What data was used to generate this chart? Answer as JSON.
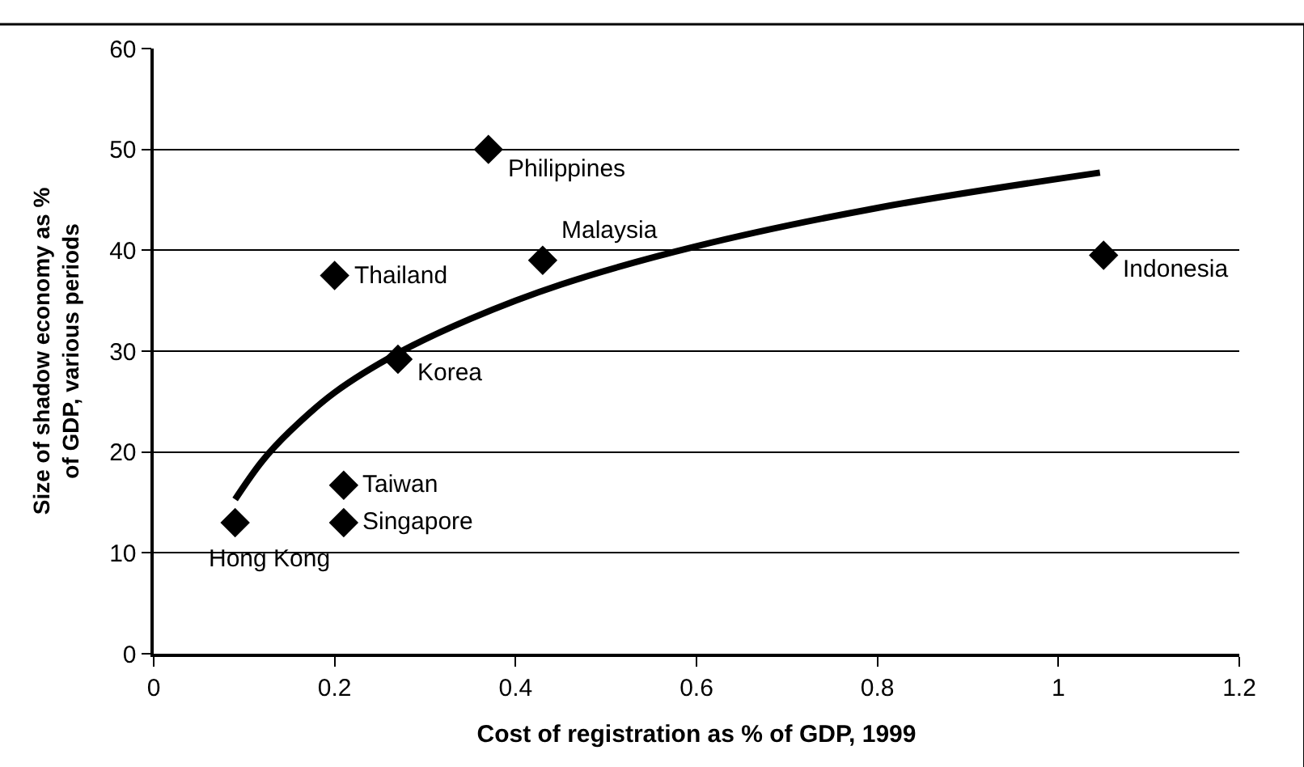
{
  "chart_data": {
    "type": "scatter",
    "xlabel": "Cost of registration as % of GDP, 1999",
    "ylabel": "Size of shadow economy as % of GDP, various periods",
    "x": [
      0.37,
      0.2,
      0.43,
      1.05,
      0.27,
      0.21,
      0.21,
      0.09
    ],
    "series": [
      {
        "color": "#000000",
        "marker": "diamond",
        "values": [
          50,
          37.5,
          39,
          39.5,
          29.2,
          16.7,
          13,
          13
        ]
      },
      {
        "type": "line",
        "color": "#000000",
        "marker": "none",
        "x": [
          0.09,
          0.12,
          0.15,
          0.2,
          0.27,
          0.35,
          0.45,
          0.6,
          0.8,
          1.046
        ],
        "values": [
          15.3,
          19.1,
          22.0,
          25.9,
          29.8,
          33.2,
          36.6,
          40.4,
          44.2,
          47.7
        ]
      }
    ],
    "annotations": [
      {
        "text": "Philippines",
        "x": 0.37,
        "y": 50
      },
      {
        "text": "Thailand",
        "x": 0.2,
        "y": 37.5
      },
      {
        "text": "Malaysia",
        "x": 0.43,
        "y": 39
      },
      {
        "text": "Indonesia",
        "x": 1.05,
        "y": 39.5
      },
      {
        "text": "Korea",
        "x": 0.27,
        "y": 29.2
      },
      {
        "text": "Taiwan",
        "x": 0.21,
        "y": 16.7
      },
      {
        "text": "Singapore",
        "x": 0.21,
        "y": 13
      },
      {
        "text": "Hong Kong",
        "x": 0.09,
        "y": 13
      }
    ],
    "xlim": [
      0,
      1.2
    ],
    "xticks": [
      0,
      0.2,
      0.4,
      0.6,
      0.8,
      1,
      1.2
    ],
    "ylim": [
      0,
      60
    ],
    "yticks": [
      0,
      10,
      20,
      30,
      40,
      50,
      60
    ],
    "grid": "y"
  }
}
